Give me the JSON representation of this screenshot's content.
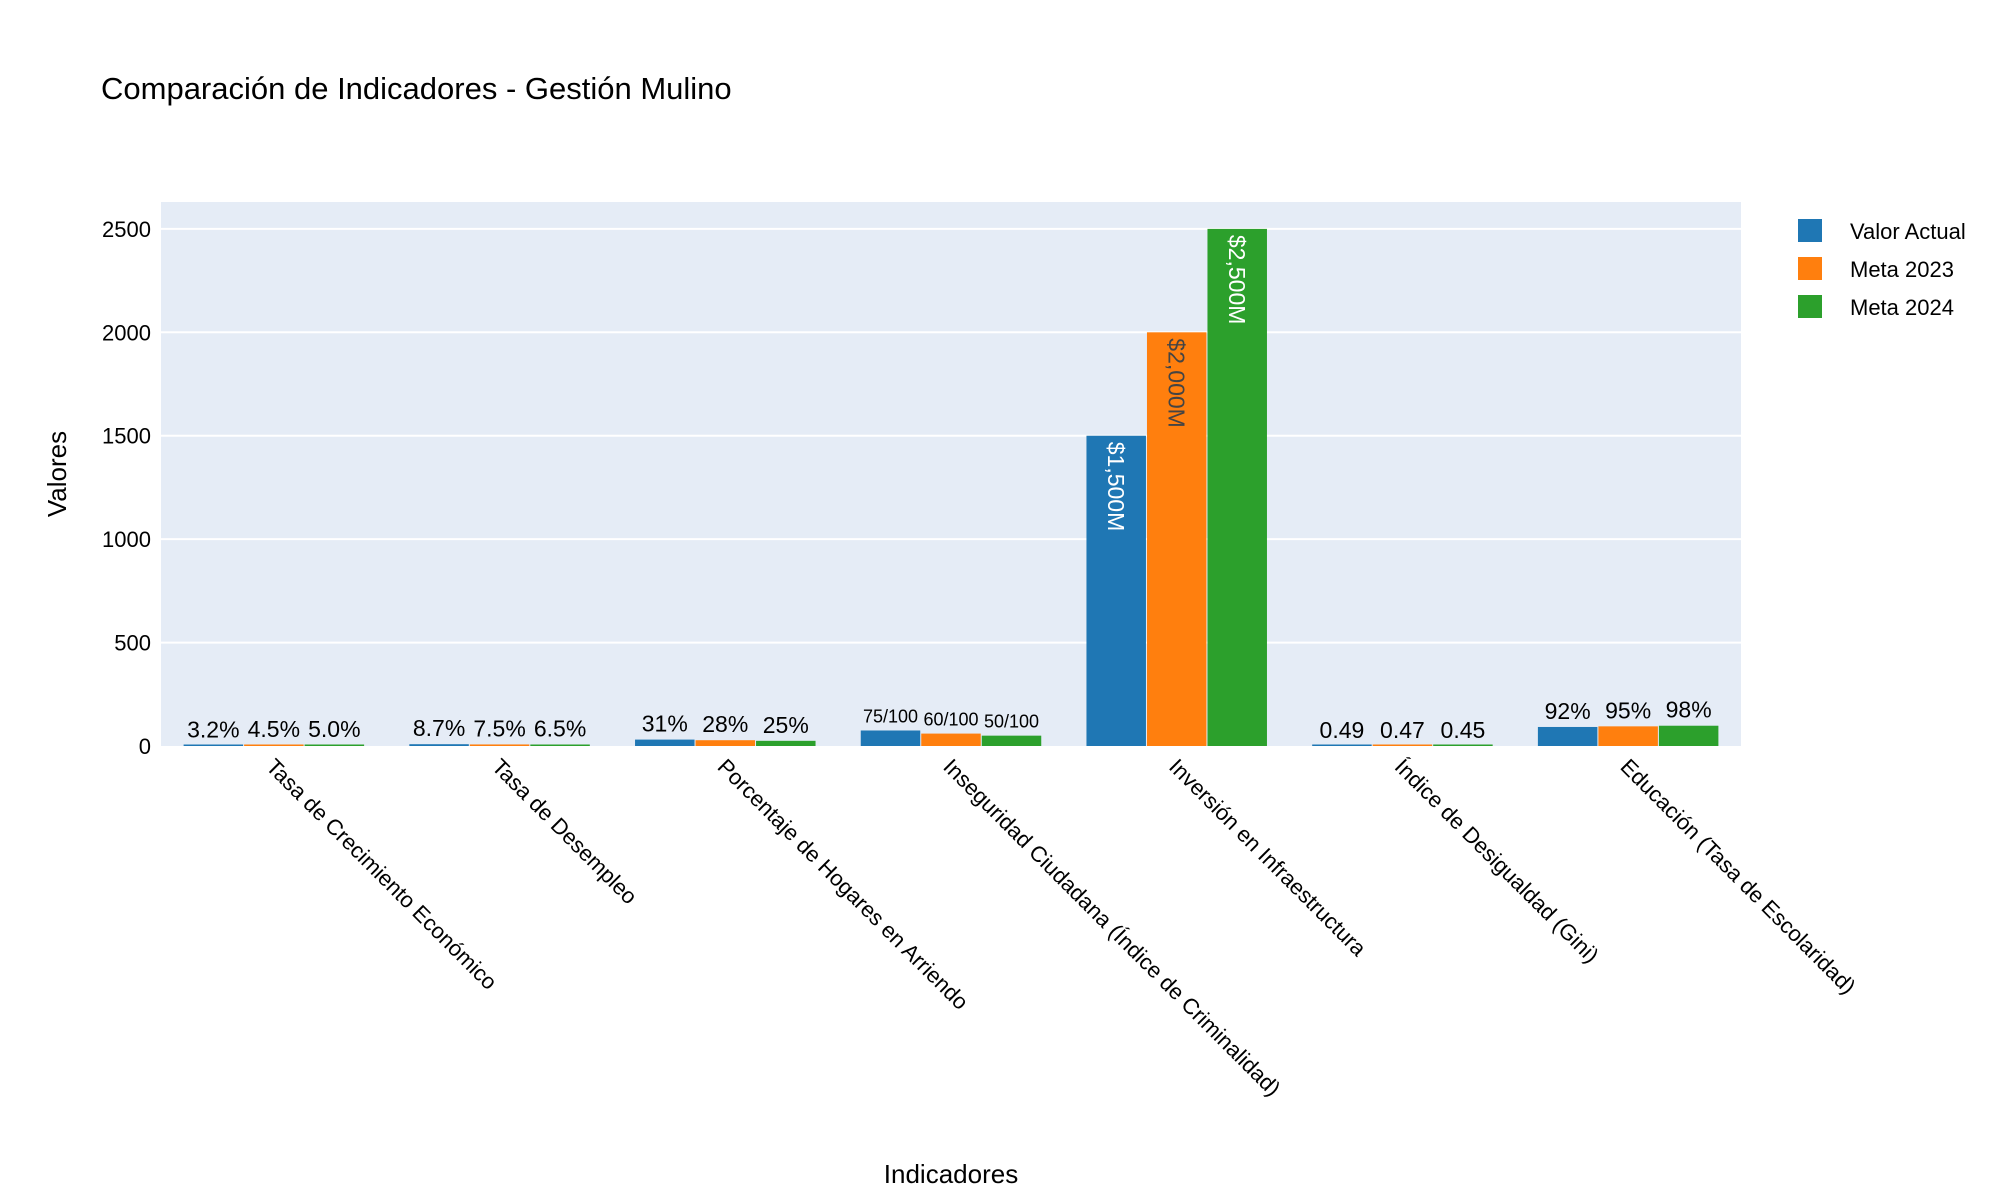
{
  "chart_data": {
    "type": "bar",
    "title": "Comparación de Indicadores - Gestión Mulino",
    "xlabel": "Indicadores",
    "ylabel": "Valores",
    "ylim": [
      0,
      2630
    ],
    "yticks": [
      0,
      500,
      1000,
      1500,
      2000,
      2500
    ],
    "grid": true,
    "legend_position": "top-right",
    "categories": [
      "Tasa de Crecimiento Económico",
      "Tasa de Desempleo",
      "Porcentaje de Hogares en Arriendo",
      "Inseguridad Ciudadana (Índice de Criminalidad)",
      "Inversión en Infraestructura",
      "Índice de Desigualdad (Gini)",
      "Educación (Tasa de Escolaridad)"
    ],
    "series": [
      {
        "name": "Valor Actual",
        "color": "#1f77b4",
        "values": [
          3.2,
          8.7,
          31,
          75,
          1500,
          0.49,
          92
        ],
        "labels": [
          "3.2%",
          "8.7%",
          "31%",
          "75/100",
          "$1,500M",
          "0.49",
          "92%"
        ]
      },
      {
        "name": "Meta 2023",
        "color": "#ff7f0e",
        "values": [
          4.5,
          7.5,
          28,
          60,
          2000,
          0.47,
          95
        ],
        "labels": [
          "4.5%",
          "7.5%",
          "28%",
          "60/100",
          "$2,000M",
          "0.47",
          "95%"
        ]
      },
      {
        "name": "Meta 2024",
        "color": "#2ca02c",
        "values": [
          5.0,
          6.5,
          25,
          50,
          2500,
          0.45,
          98
        ],
        "labels": [
          "5.0%",
          "6.5%",
          "25%",
          "50/100",
          "$2,500M",
          "0.45",
          "98%"
        ]
      }
    ]
  }
}
